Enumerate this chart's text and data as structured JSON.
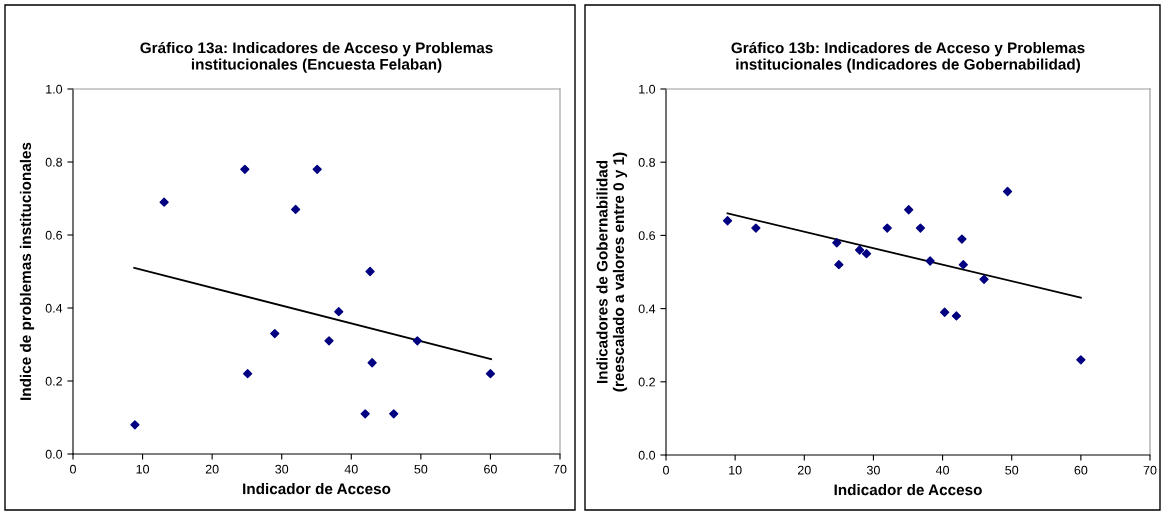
{
  "chart_data": [
    {
      "type": "scatter",
      "title": "Gráfico 13a: Indicadores de Acceso y Problemas\ninstitucionales (Encuesta Felaban)",
      "xlabel": "Indicador de Acceso",
      "ylabel": "Indice de problemas institucionales",
      "xlim": [
        0,
        70
      ],
      "xticks": [
        0,
        10,
        20,
        30,
        40,
        50,
        60,
        70
      ],
      "ylim": [
        0,
        1
      ],
      "yticks": [
        {
          "value": 0,
          "label": "0.0"
        },
        {
          "value": 0.2,
          "label": "0.2"
        },
        {
          "value": 0.4,
          "label": "0.4"
        },
        {
          "value": 0.6,
          "label": "0.6"
        },
        {
          "value": 0.8,
          "label": "0.8"
        },
        {
          "value": 1,
          "label": "1.0"
        }
      ],
      "grid": false,
      "series": [
        {
          "color": "#000080",
          "marker": "diamond",
          "x": [
            8.9,
            13.1,
            24.7,
            25.1,
            29.0,
            32.0,
            35.1,
            36.8,
            38.2,
            42.0,
            42.7,
            43.0,
            46.1,
            49.5,
            60.0
          ],
          "values": [
            0.08,
            0.69,
            0.78,
            0.22,
            0.33,
            0.67,
            0.78,
            0.31,
            0.39,
            0.11,
            0.5,
            0.25,
            0.11,
            0.31,
            0.22
          ]
        },
        {
          "type": "line",
          "color": "#000000",
          "x": [
            8.8,
            60.1
          ],
          "values": [
            0.51,
            0.26
          ]
        }
      ]
    },
    {
      "type": "scatter",
      "title": "Gráfico 13b: Indicadores de Acceso y Problemas\ninstitucionales (Indicadores de Gobernabilidad)",
      "xlabel": "Indicador de Acceso",
      "ylabel": "Indicadores de Gobernabilidad\n(reescalado a valores entre 0 y 1)",
      "xlim": [
        0,
        70
      ],
      "xticks": [
        0,
        10,
        20,
        30,
        40,
        50,
        60,
        70
      ],
      "ylim": [
        0,
        1
      ],
      "yticks": [
        {
          "value": 0,
          "label": "0.0"
        },
        {
          "value": 0.2,
          "label": "0.2"
        },
        {
          "value": 0.4,
          "label": "0.4"
        },
        {
          "value": 0.6,
          "label": "0.6"
        },
        {
          "value": 0.8,
          "label": "0.8"
        },
        {
          "value": 1,
          "label": "1.0"
        }
      ],
      "grid": false,
      "series": [
        {
          "color": "#000080",
          "marker": "diamond",
          "x": [
            8.9,
            13.0,
            24.7,
            25.0,
            28.0,
            29.0,
            32.0,
            35.1,
            36.8,
            38.2,
            40.3,
            42.0,
            42.8,
            43.0,
            46.0,
            49.4,
            60.0
          ],
          "values": [
            0.64,
            0.62,
            0.58,
            0.52,
            0.56,
            0.55,
            0.62,
            0.67,
            0.62,
            0.53,
            0.39,
            0.38,
            0.59,
            0.52,
            0.48,
            0.72,
            0.26
          ]
        },
        {
          "type": "line",
          "color": "#000000",
          "x": [
            8.9,
            60.0
          ],
          "values": [
            0.66,
            0.43
          ]
        }
      ]
    }
  ]
}
